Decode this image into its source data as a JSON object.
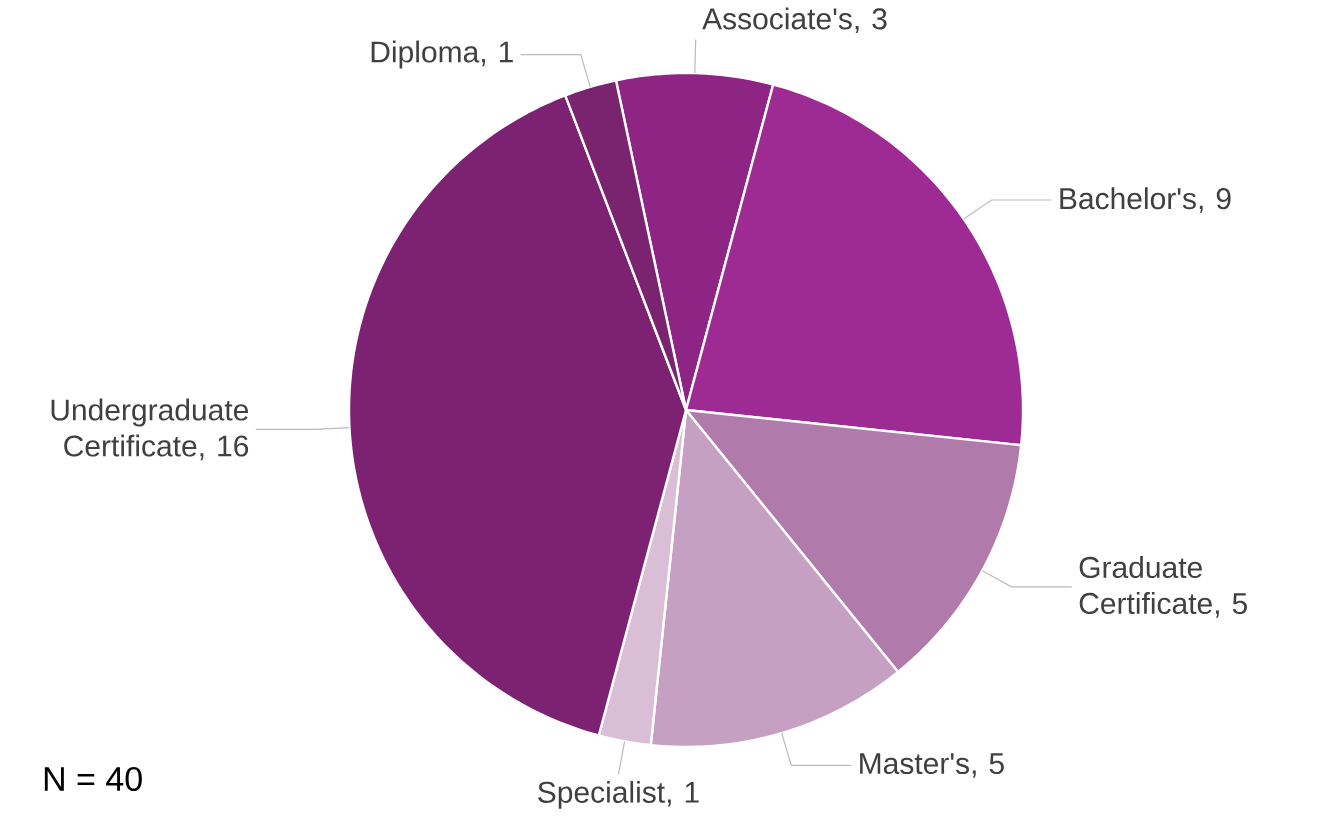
{
  "chart_data": {
    "type": "pie",
    "categories": [
      "Associate's",
      "Bachelor's",
      "Graduate Certificate",
      "Master's",
      "Specialist",
      "Undergraduate Certificate",
      "Diploma"
    ],
    "values": [
      3,
      9,
      5,
      5,
      1,
      16,
      1
    ],
    "colors": [
      "#8e2585",
      "#9e2a93",
      "#b07aab",
      "#c6a0c3",
      "#d9bed6",
      "#7d2172",
      "#7a2470"
    ],
    "value_labels": [
      ", 3",
      ", 9",
      ", 5",
      ", 5",
      ", 1",
      ", 16",
      ", 1"
    ],
    "annotations": [
      "N = 40"
    ]
  }
}
